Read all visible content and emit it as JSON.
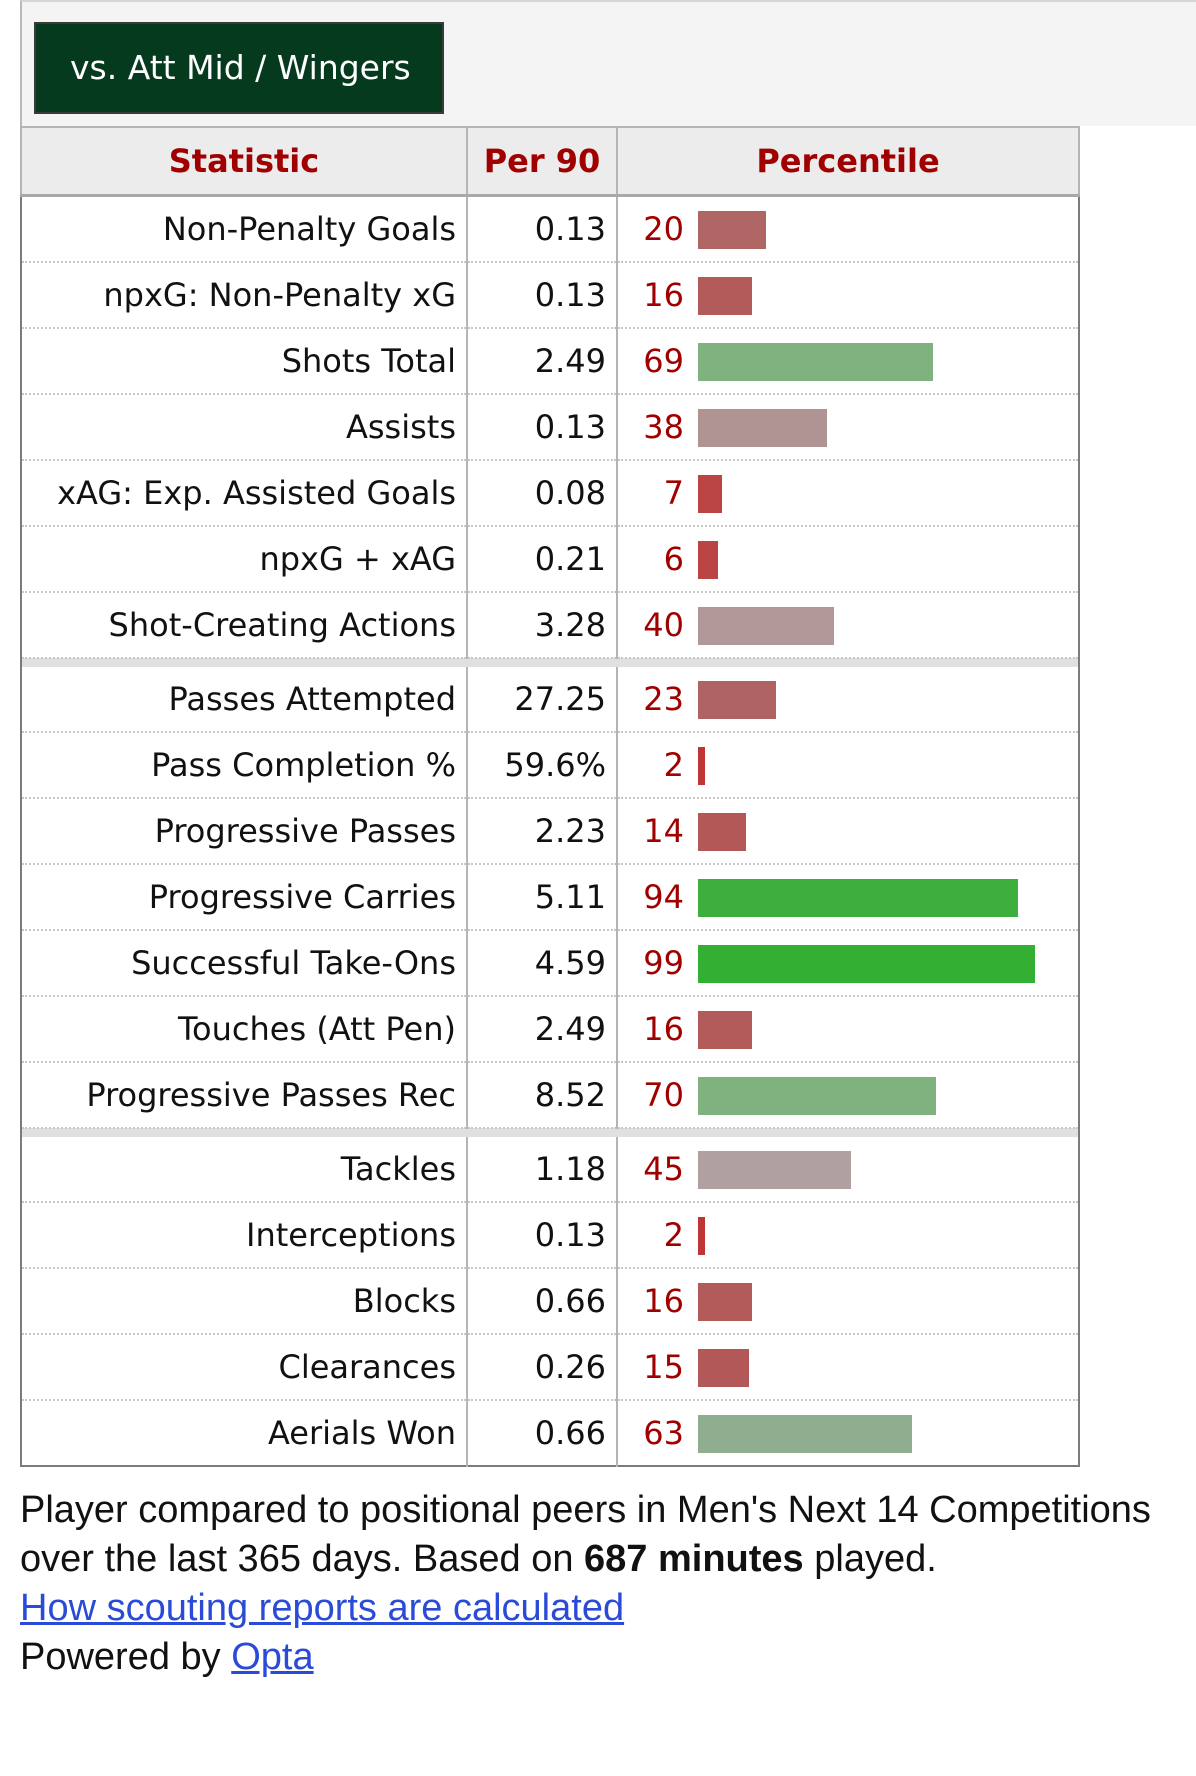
{
  "tab": {
    "label": "vs. Att Mid / Wingers"
  },
  "table": {
    "headers": {
      "statistic": "Statistic",
      "per90": "Per 90",
      "percentile": "Percentile"
    },
    "groups": [
      [
        {
          "stat": "Non-Penalty Goals",
          "per90": "0.13",
          "percentile": 20,
          "color": "#b06565"
        },
        {
          "stat": "npxG: Non-Penalty xG",
          "per90": "0.13",
          "percentile": 16,
          "color": "#b35a5a"
        },
        {
          "stat": "Shots Total",
          "per90": "2.49",
          "percentile": 69,
          "color": "#7fb27f"
        },
        {
          "stat": "Assists",
          "per90": "0.13",
          "percentile": 38,
          "color": "#b09494"
        },
        {
          "stat": "xAG: Exp. Assisted Goals",
          "per90": "0.08",
          "percentile": 7,
          "color": "#bb4444"
        },
        {
          "stat": "npxG + xAG",
          "per90": "0.21",
          "percentile": 6,
          "color": "#bb4444"
        },
        {
          "stat": "Shot-Creating Actions",
          "per90": "3.28",
          "percentile": 40,
          "color": "#b09898"
        }
      ],
      [
        {
          "stat": "Passes Attempted",
          "per90": "27.25",
          "percentile": 23,
          "color": "#b06363"
        },
        {
          "stat": "Pass Completion %",
          "per90": "59.6%",
          "percentile": 2,
          "color": "#bf3535"
        },
        {
          "stat": "Progressive Passes",
          "per90": "2.23",
          "percentile": 14,
          "color": "#b35757"
        },
        {
          "stat": "Progressive Carries",
          "per90": "5.11",
          "percentile": 94,
          "color": "#3caf3c"
        },
        {
          "stat": "Successful Take-Ons",
          "per90": "4.59",
          "percentile": 99,
          "color": "#33b033"
        },
        {
          "stat": "Touches (Att Pen)",
          "per90": "2.49",
          "percentile": 16,
          "color": "#b35a5a"
        },
        {
          "stat": "Progressive Passes Rec",
          "per90": "8.52",
          "percentile": 70,
          "color": "#7fb27f"
        }
      ],
      [
        {
          "stat": "Tackles",
          "per90": "1.18",
          "percentile": 45,
          "color": "#b0a0a0"
        },
        {
          "stat": "Interceptions",
          "per90": "0.13",
          "percentile": 2,
          "color": "#bf3535"
        },
        {
          "stat": "Blocks",
          "per90": "0.66",
          "percentile": 16,
          "color": "#b35a5a"
        },
        {
          "stat": "Clearances",
          "per90": "0.26",
          "percentile": 15,
          "color": "#b35858"
        },
        {
          "stat": "Aerials Won",
          "per90": "0.66",
          "percentile": 63,
          "color": "#8fae8f"
        }
      ]
    ]
  },
  "footer": {
    "text1": "Player compared to positional peers in Men's Next 14 Competitions over the last 365 days. Based on ",
    "minutes_bold": "687 minutes",
    "text2": " played.",
    "link_label": "How scouting reports are calculated",
    "powered_prefix": "Powered by ",
    "powered_link": "Opta"
  }
}
